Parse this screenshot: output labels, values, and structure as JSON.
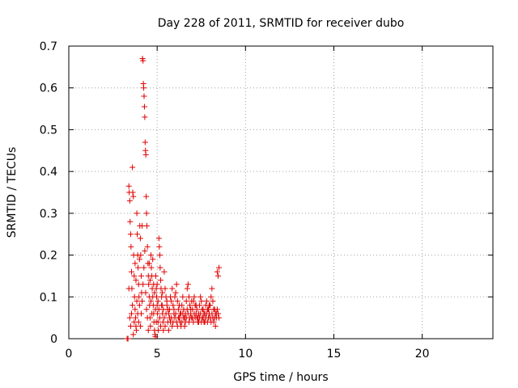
{
  "chart_data": {
    "type": "scatter",
    "title": "Day 228 of 2011, SRMTID for receiver dubo",
    "xlabel": "GPS time / hours",
    "ylabel": "SRMTID / TECUs",
    "xlim": [
      0,
      24
    ],
    "ylim": [
      0,
      0.7
    ],
    "xticks": [
      0,
      5,
      10,
      15,
      20
    ],
    "yticks": [
      0,
      0.1,
      0.2,
      0.3,
      0.4,
      0.5,
      0.6,
      0.7
    ],
    "xtick_labels": [
      "0",
      "5",
      "10",
      "15",
      "20"
    ],
    "ytick_labels": [
      "0",
      "0.1",
      "0.2",
      "0.3",
      "0.4",
      "0.5",
      "0.6",
      "0.7"
    ],
    "grid": true,
    "marker": "+",
    "color": "#e00000",
    "series": [
      {
        "name": "SRMTID",
        "points": [
          [
            3.3,
            0.0
          ],
          [
            3.35,
            0.0
          ],
          [
            3.4,
            0.365
          ],
          [
            3.42,
            0.35
          ],
          [
            3.45,
            0.33
          ],
          [
            3.47,
            0.28
          ],
          [
            3.5,
            0.25
          ],
          [
            3.52,
            0.22
          ],
          [
            3.55,
            0.16
          ],
          [
            3.57,
            0.12
          ],
          [
            3.6,
            0.41
          ],
          [
            3.62,
            0.35
          ],
          [
            3.65,
            0.34
          ],
          [
            3.67,
            0.2
          ],
          [
            3.7,
            0.15
          ],
          [
            3.72,
            0.1
          ],
          [
            3.75,
            0.07
          ],
          [
            3.78,
            0.05
          ],
          [
            3.8,
            0.03
          ],
          [
            3.82,
            0.02
          ],
          [
            3.85,
            0.3
          ],
          [
            3.87,
            0.25
          ],
          [
            3.9,
            0.2
          ],
          [
            3.92,
            0.17
          ],
          [
            3.95,
            0.13
          ],
          [
            3.97,
            0.1
          ],
          [
            4.0,
            0.08
          ],
          [
            4.02,
            0.27
          ],
          [
            4.05,
            0.24
          ],
          [
            4.07,
            0.2
          ],
          [
            4.1,
            0.15
          ],
          [
            4.12,
            0.11
          ],
          [
            4.15,
            0.27
          ],
          [
            4.17,
            0.67
          ],
          [
            4.2,
            0.665
          ],
          [
            4.22,
            0.61
          ],
          [
            4.24,
            0.6
          ],
          [
            4.26,
            0.58
          ],
          [
            4.28,
            0.555
          ],
          [
            4.3,
            0.53
          ],
          [
            4.32,
            0.47
          ],
          [
            4.34,
            0.45
          ],
          [
            4.36,
            0.44
          ],
          [
            4.38,
            0.34
          ],
          [
            4.4,
            0.3
          ],
          [
            4.42,
            0.27
          ],
          [
            4.45,
            0.22
          ],
          [
            4.48,
            0.18
          ],
          [
            4.5,
            0.15
          ],
          [
            4.52,
            0.13
          ],
          [
            4.55,
            0.1
          ],
          [
            4.57,
            0.08
          ],
          [
            4.6,
            0.05
          ],
          [
            4.62,
            0.03
          ],
          [
            4.65,
            0.2
          ],
          [
            4.67,
            0.17
          ],
          [
            4.7,
            0.15
          ],
          [
            4.72,
            0.12
          ],
          [
            4.75,
            0.1
          ],
          [
            4.78,
            0.08
          ],
          [
            4.8,
            0.06
          ],
          [
            4.82,
            0.04
          ],
          [
            4.85,
            0.02
          ],
          [
            4.88,
            0.01
          ],
          [
            4.9,
            0.005
          ],
          [
            4.92,
            0.15
          ],
          [
            4.95,
            0.12
          ],
          [
            4.97,
            0.1
          ],
          [
            5.0,
            0.08
          ],
          [
            5.02,
            0.06
          ],
          [
            5.05,
            0.04
          ],
          [
            5.07,
            0.02
          ],
          [
            5.1,
            0.24
          ],
          [
            5.12,
            0.22
          ],
          [
            5.15,
            0.2
          ],
          [
            5.17,
            0.17
          ],
          [
            5.2,
            0.14
          ],
          [
            5.22,
            0.12
          ],
          [
            5.25,
            0.1
          ],
          [
            5.28,
            0.08
          ],
          [
            5.3,
            0.06
          ],
          [
            5.33,
            0.04
          ],
          [
            5.35,
            0.02
          ],
          [
            5.4,
            0.16
          ],
          [
            5.45,
            0.12
          ],
          [
            5.5,
            0.1
          ],
          [
            5.55,
            0.08
          ],
          [
            5.6,
            0.07
          ],
          [
            5.65,
            0.06
          ],
          [
            5.7,
            0.05
          ],
          [
            5.75,
            0.04
          ],
          [
            5.8,
            0.09
          ],
          [
            5.85,
            0.12
          ],
          [
            5.9,
            0.08
          ],
          [
            5.95,
            0.06
          ],
          [
            6.0,
            0.05
          ],
          [
            6.05,
            0.11
          ],
          [
            6.1,
            0.13
          ],
          [
            6.15,
            0.09
          ],
          [
            6.2,
            0.07
          ],
          [
            6.25,
            0.05
          ],
          [
            6.3,
            0.04
          ],
          [
            6.35,
            0.06
          ],
          [
            6.4,
            0.08
          ],
          [
            6.45,
            0.1
          ],
          [
            6.5,
            0.07
          ],
          [
            6.55,
            0.05
          ],
          [
            6.6,
            0.06
          ],
          [
            6.65,
            0.09
          ],
          [
            6.7,
            0.12
          ],
          [
            6.75,
            0.13
          ],
          [
            6.8,
            0.1
          ],
          [
            6.85,
            0.08
          ],
          [
            6.9,
            0.06
          ],
          [
            6.95,
            0.05
          ],
          [
            7.0,
            0.07
          ],
          [
            7.05,
            0.09
          ],
          [
            7.1,
            0.1
          ],
          [
            7.15,
            0.08
          ],
          [
            7.2,
            0.06
          ],
          [
            7.25,
            0.05
          ],
          [
            7.3,
            0.04
          ],
          [
            7.35,
            0.06
          ],
          [
            7.4,
            0.08
          ],
          [
            7.45,
            0.1
          ],
          [
            7.5,
            0.09
          ],
          [
            7.55,
            0.07
          ],
          [
            7.6,
            0.05
          ],
          [
            7.65,
            0.04
          ],
          [
            7.7,
            0.06
          ],
          [
            7.75,
            0.08
          ],
          [
            7.8,
            0.09
          ],
          [
            7.85,
            0.07
          ],
          [
            7.9,
            0.05
          ],
          [
            7.95,
            0.06
          ],
          [
            8.0,
            0.08
          ],
          [
            8.05,
            0.1
          ],
          [
            8.1,
            0.12
          ],
          [
            8.15,
            0.09
          ],
          [
            8.2,
            0.07
          ],
          [
            8.25,
            0.05
          ],
          [
            8.3,
            0.03
          ],
          [
            8.35,
            0.06
          ],
          [
            8.4,
            0.16
          ],
          [
            8.45,
            0.15
          ],
          [
            8.5,
            0.17
          ],
          [
            3.4,
            0.12
          ],
          [
            3.45,
            0.05
          ],
          [
            3.5,
            0.03
          ],
          [
            3.55,
            0.06
          ],
          [
            3.6,
            0.08
          ],
          [
            3.65,
            0.01
          ],
          [
            3.7,
            0.04
          ],
          [
            3.75,
            0.18
          ],
          [
            3.8,
            0.14
          ],
          [
            3.85,
            0.09
          ],
          [
            3.9,
            0.06
          ],
          [
            3.95,
            0.04
          ],
          [
            4.0,
            0.19
          ],
          [
            4.05,
            0.03
          ],
          [
            4.1,
            0.06
          ],
          [
            4.15,
            0.09
          ],
          [
            4.2,
            0.13
          ],
          [
            4.25,
            0.17
          ],
          [
            4.3,
            0.21
          ],
          [
            4.35,
            0.11
          ],
          [
            4.4,
            0.07
          ],
          [
            4.45,
            0.05
          ],
          [
            4.5,
            0.02
          ],
          [
            4.55,
            0.18
          ],
          [
            4.6,
            0.14
          ],
          [
            4.65,
            0.09
          ],
          [
            4.7,
            0.06
          ],
          [
            4.75,
            0.19
          ],
          [
            4.8,
            0.13
          ],
          [
            4.85,
            0.11
          ],
          [
            4.9,
            0.07
          ],
          [
            4.95,
            0.04
          ],
          [
            5.0,
            0.13
          ],
          [
            5.05,
            0.09
          ],
          [
            5.1,
            0.07
          ],
          [
            5.15,
            0.05
          ],
          [
            5.2,
            0.03
          ],
          [
            5.25,
            0.08
          ],
          [
            5.3,
            0.11
          ],
          [
            5.35,
            0.07
          ],
          [
            5.4,
            0.05
          ],
          [
            5.45,
            0.03
          ],
          [
            5.5,
            0.06
          ],
          [
            5.55,
            0.09
          ],
          [
            5.6,
            0.04
          ],
          [
            5.65,
            0.02
          ],
          [
            5.7,
            0.07
          ],
          [
            5.75,
            0.1
          ],
          [
            5.8,
            0.05
          ],
          [
            5.85,
            0.03
          ],
          [
            5.9,
            0.04
          ],
          [
            5.95,
            0.07
          ],
          [
            6.0,
            0.1
          ],
          [
            6.05,
            0.06
          ],
          [
            6.1,
            0.04
          ],
          [
            6.15,
            0.03
          ],
          [
            6.2,
            0.05
          ],
          [
            6.25,
            0.08
          ],
          [
            6.3,
            0.06
          ],
          [
            6.35,
            0.03
          ],
          [
            6.4,
            0.04
          ],
          [
            6.45,
            0.06
          ],
          [
            6.5,
            0.05
          ],
          [
            6.55,
            0.03
          ],
          [
            6.6,
            0.04
          ],
          [
            6.65,
            0.05
          ],
          [
            6.7,
            0.07
          ],
          [
            6.75,
            0.06
          ],
          [
            6.8,
            0.04
          ],
          [
            6.85,
            0.05
          ],
          [
            6.9,
            0.07
          ],
          [
            6.95,
            0.09
          ],
          [
            7.0,
            0.05
          ],
          [
            7.05,
            0.04
          ],
          [
            7.1,
            0.06
          ],
          [
            7.15,
            0.05
          ],
          [
            7.2,
            0.08
          ],
          [
            7.25,
            0.07
          ],
          [
            7.3,
            0.05
          ],
          [
            7.35,
            0.04
          ],
          [
            7.4,
            0.05
          ],
          [
            7.45,
            0.06
          ],
          [
            7.5,
            0.04
          ],
          [
            7.55,
            0.05
          ],
          [
            7.6,
            0.07
          ],
          [
            7.65,
            0.06
          ],
          [
            7.7,
            0.04
          ],
          [
            7.75,
            0.05
          ],
          [
            7.8,
            0.06
          ],
          [
            7.85,
            0.04
          ],
          [
            7.9,
            0.07
          ],
          [
            7.95,
            0.08
          ],
          [
            8.0,
            0.05
          ],
          [
            8.05,
            0.04
          ],
          [
            8.1,
            0.06
          ],
          [
            8.15,
            0.05
          ],
          [
            8.2,
            0.04
          ],
          [
            8.25,
            0.07
          ],
          [
            8.3,
            0.06
          ],
          [
            8.35,
            0.05
          ],
          [
            8.4,
            0.07
          ],
          [
            8.45,
            0.06
          ],
          [
            8.5,
            0.05
          ]
        ]
      }
    ]
  }
}
